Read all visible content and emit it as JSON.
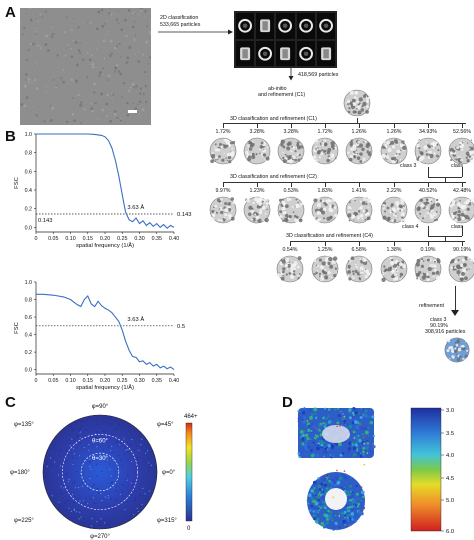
{
  "panels": {
    "a": "A",
    "b": "B",
    "c": "C",
    "d": "D"
  },
  "pipeline": {
    "classification_2d": "2D classification",
    "particles_2d": "533,665 particles",
    "particles_kept": "418,569 particles",
    "abinitio_1": "ab-initio",
    "abinitio_2": "and  refinement (C1)",
    "round1": {
      "label": "3D classification and  refinement (C1)",
      "percents": [
        "1.72%",
        "3.28%",
        "3.28%",
        "1.72%",
        "1.26%",
        "1.26%",
        "34.93%",
        "52.56%"
      ]
    },
    "round1_pick": {
      "left": "class 3",
      "right": "class"
    },
    "round2": {
      "label": "3D classification and  refinement (C2)",
      "percents": [
        "9.97%",
        "1.23%",
        "0.53%",
        "1.83%",
        "1.41%",
        "2.22%",
        "40.52%",
        "42.48%"
      ]
    },
    "round2_pick": {
      "left": "class 4",
      "right": "class"
    },
    "round3": {
      "label": "3D classification and  refinement (C4)",
      "percents": [
        "0.54%",
        "1.25%",
        "6.58%",
        "1.38%",
        "0.19%",
        "90.19%"
      ]
    },
    "refinement": "refinement",
    "final_1": "class 3",
    "final_2": "90.19%",
    "final_3": "308,916 particles"
  },
  "fsc_plots": {
    "ylabel": "FSC",
    "xlabel": "spatial frequency (1/Å)",
    "x_ticks": [
      "0",
      "0.05",
      "0.10",
      "0.15",
      "0.20",
      "0.25",
      "0.30",
      "0.35",
      "0.40"
    ],
    "y_ticks": [
      "0.0",
      "0.2",
      "0.4",
      "0.6",
      "0.8",
      "1.0"
    ],
    "top": {
      "resolution": "3.63 Å",
      "threshold_left": "0.143",
      "threshold_right": "0.143"
    },
    "bottom": {
      "resolution": "3.63 Å",
      "threshold_right": "0.5"
    }
  },
  "chart_data": [
    {
      "type": "line",
      "xlabel": "spatial frequency (1/Å)",
      "ylabel": "FSC",
      "xlim": [
        0,
        0.4
      ],
      "ylim": [
        -0.05,
        1.0
      ],
      "threshold": 0.143,
      "resolution_label": "3.63 Å",
      "series": [
        {
          "color": "#3a6fc4",
          "x": [
            0,
            0.02,
            0.05,
            0.08,
            0.1,
            0.12,
            0.15,
            0.17,
            0.19,
            0.2,
            0.21,
            0.22,
            0.23,
            0.24,
            0.25,
            0.255,
            0.26,
            0.265,
            0.27,
            0.28,
            0.29,
            0.3,
            0.31,
            0.32,
            0.33,
            0.34,
            0.35,
            0.36,
            0.37,
            0.38,
            0.39,
            0.4
          ],
          "y": [
            1.0,
            1.0,
            1.0,
            1.0,
            1.0,
            1.0,
            1.0,
            0.995,
            0.985,
            0.97,
            0.93,
            0.85,
            0.72,
            0.55,
            0.35,
            0.25,
            0.16,
            0.12,
            0.08,
            0.06,
            0.1,
            0.04,
            0.07,
            0.02,
            0.05,
            0.01,
            0.04,
            0.0,
            0.03,
            -0.01,
            0.02,
            0.0
          ]
        }
      ]
    },
    {
      "type": "line",
      "xlabel": "spatial frequency (1/Å)",
      "ylabel": "FSC",
      "xlim": [
        0,
        0.4
      ],
      "ylim": [
        -0.05,
        1.0
      ],
      "threshold": 0.5,
      "resolution_label": "3.63 Å",
      "series": [
        {
          "color": "#3a6fc4",
          "x": [
            0,
            0.02,
            0.05,
            0.08,
            0.1,
            0.12,
            0.13,
            0.14,
            0.15,
            0.16,
            0.17,
            0.18,
            0.19,
            0.2,
            0.21,
            0.22,
            0.23,
            0.24,
            0.25,
            0.26,
            0.27,
            0.28,
            0.29,
            0.3,
            0.31,
            0.32,
            0.33,
            0.34,
            0.35,
            0.36,
            0.37,
            0.38,
            0.39,
            0.4
          ],
          "y": [
            0.86,
            0.86,
            0.85,
            0.83,
            0.8,
            0.74,
            0.72,
            0.8,
            0.84,
            0.75,
            0.72,
            0.78,
            0.73,
            0.7,
            0.68,
            0.65,
            0.6,
            0.55,
            0.45,
            0.32,
            0.22,
            0.15,
            0.14,
            0.09,
            0.1,
            0.06,
            0.08,
            0.04,
            0.06,
            0.02,
            0.04,
            0.01,
            0.03,
            0.0
          ]
        }
      ]
    }
  ],
  "polar": {
    "labels": {
      "p90": "φ=90°",
      "p45": "φ=45°",
      "p135": "φ=135°",
      "p0": "φ=0°",
      "p180": "φ=180°",
      "p225": "φ=225°",
      "p315": "φ=315°",
      "p270": "φ=270°",
      "t60": "θ=60°",
      "t30": "θ=30°"
    },
    "colorbar_max": "464+",
    "colorbar_min": "0"
  },
  "resmap": {
    "ticks": [
      "3.0",
      "3.5",
      "4.0",
      "4.5",
      "5.0",
      "6.0"
    ]
  }
}
